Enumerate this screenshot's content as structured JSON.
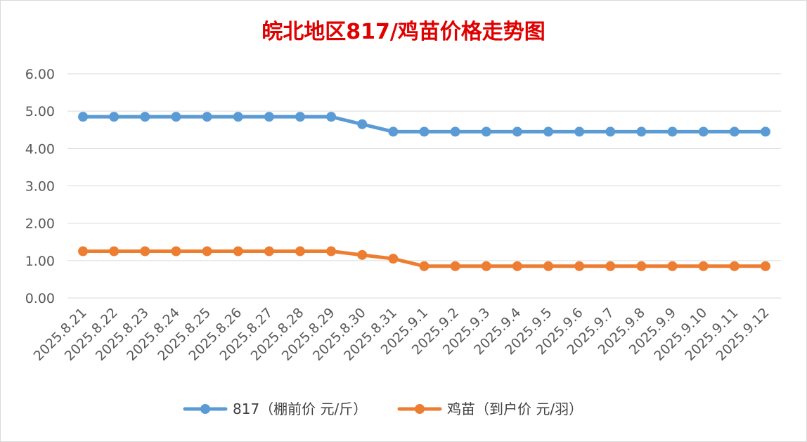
{
  "chart_data": {
    "type": "line",
    "title": "皖北地区817/鸡苗价格走势图",
    "title_color": "#e00000",
    "categories": [
      "2025.8.21",
      "2025.8.22",
      "2025.8.23",
      "2025.8.24",
      "2025.8.25",
      "2025.8.26",
      "2025.8.27",
      "2025.8.28",
      "2025.8.29",
      "2025.8.30",
      "2025.8.31",
      "2025.9.1",
      "2025.9.2",
      "2025.9.3",
      "2025.9.4",
      "2025.9.5",
      "2025.9.6",
      "2025.9.7",
      "2025.9.8",
      "2025.9.9",
      "2025.9.10",
      "2025.9.11",
      "2025.9.12"
    ],
    "series": [
      {
        "name": "817（棚前价 元/斤）",
        "color": "#5b9bd5",
        "values": [
          4.85,
          4.85,
          4.85,
          4.85,
          4.85,
          4.85,
          4.85,
          4.85,
          4.85,
          4.65,
          4.45,
          4.45,
          4.45,
          4.45,
          4.45,
          4.45,
          4.45,
          4.45,
          4.45,
          4.45,
          4.45,
          4.45,
          4.45
        ]
      },
      {
        "name": "鸡苗（到户价 元/羽）",
        "color": "#ed7d31",
        "values": [
          1.25,
          1.25,
          1.25,
          1.25,
          1.25,
          1.25,
          1.25,
          1.25,
          1.25,
          1.15,
          1.05,
          0.85,
          0.85,
          0.85,
          0.85,
          0.85,
          0.85,
          0.85,
          0.85,
          0.85,
          0.85,
          0.85,
          0.85
        ]
      }
    ],
    "ylim": [
      0,
      6
    ],
    "yticks": [
      "0.00",
      "1.00",
      "2.00",
      "3.00",
      "4.00",
      "5.00",
      "6.00"
    ],
    "grid": true,
    "legend_position": "bottom",
    "xlabel": "",
    "ylabel": ""
  }
}
